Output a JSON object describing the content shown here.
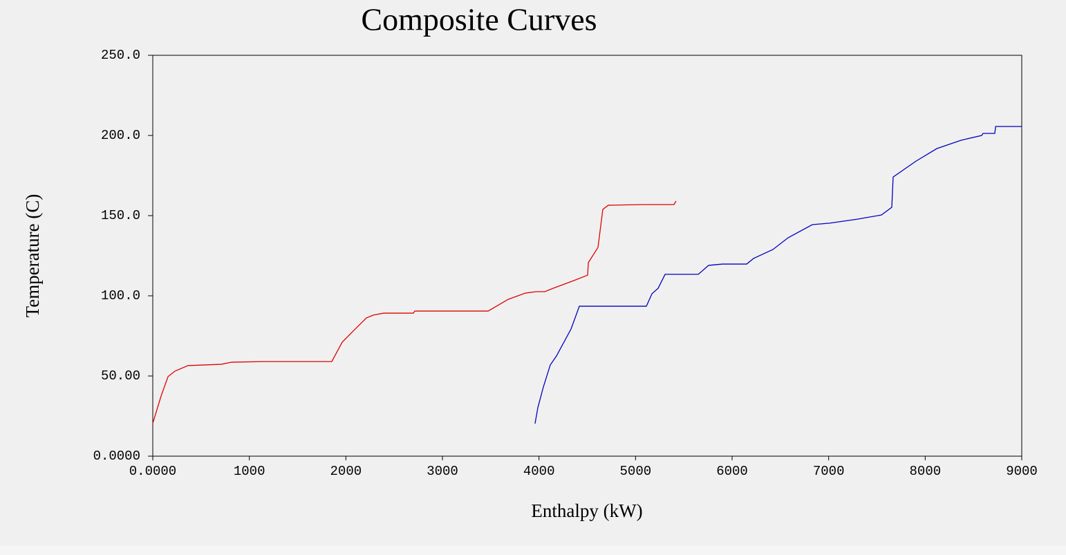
{
  "chart_data": {
    "type": "line",
    "title": "Composite Curves",
    "xlabel": "Enthalpy (kW)",
    "ylabel": "Temperature (C)",
    "xlim": [
      0,
      9000
    ],
    "ylim": [
      0,
      250
    ],
    "xticks": [
      {
        "value": 0,
        "label": "0.0000"
      },
      1000,
      2000,
      3000,
      4000,
      5000,
      6000,
      7000,
      8000,
      9000
    ],
    "yticks": [
      {
        "value": 0,
        "label": "0.0000"
      },
      {
        "value": 50,
        "label": "50.00"
      },
      {
        "value": 100,
        "label": "100.0"
      },
      {
        "value": 150,
        "label": "150.0"
      },
      {
        "value": 200,
        "label": "200.0"
      },
      {
        "value": 250,
        "label": "250.0"
      }
    ],
    "grid": false,
    "series": [
      {
        "color": "#e00000",
        "x": [
          0,
          86,
          158,
          229,
          365,
          709,
          816,
          1138,
          1854,
          1962,
          2069,
          2212,
          2284,
          2391,
          2699,
          2714,
          3473,
          3681,
          3860,
          3967,
          4060,
          4146,
          4360,
          4504,
          4511,
          4611,
          4661,
          4718,
          5076,
          5398,
          5420
        ],
        "values": [
          20.5,
          37.5,
          49.6,
          53,
          56.5,
          57.3,
          58.6,
          59,
          59,
          71.1,
          77.6,
          86.2,
          88,
          89.2,
          89.2,
          90.5,
          90.5,
          97.8,
          101.7,
          102.6,
          102.6,
          104.7,
          109.5,
          112.9,
          120.7,
          130.2,
          153.9,
          156.5,
          156.9,
          156.9,
          159.1
        ]
      },
      {
        "color": "#0000c0",
        "x": [
          3959,
          3988,
          4045,
          4117,
          4181,
          4332,
          4418,
          5112,
          5170,
          5234,
          5306,
          5650,
          5757,
          5900,
          6151,
          6222,
          6423,
          6580,
          6831,
          7010,
          7296,
          7547,
          7654,
          7668,
          7905,
          8120,
          8370,
          8585,
          8599,
          8721,
          8729,
          9000
        ],
        "values": [
          20.3,
          30.2,
          43.1,
          56.9,
          62.5,
          79.3,
          93.5,
          93.5,
          101.3,
          104.7,
          113.4,
          113.4,
          119,
          119.8,
          119.8,
          123.3,
          128.9,
          136.2,
          144.4,
          145.3,
          147.8,
          150.4,
          155.2,
          174.1,
          184,
          191.8,
          197,
          200,
          201.3,
          201.3,
          205.6,
          205.6
        ]
      }
    ]
  }
}
